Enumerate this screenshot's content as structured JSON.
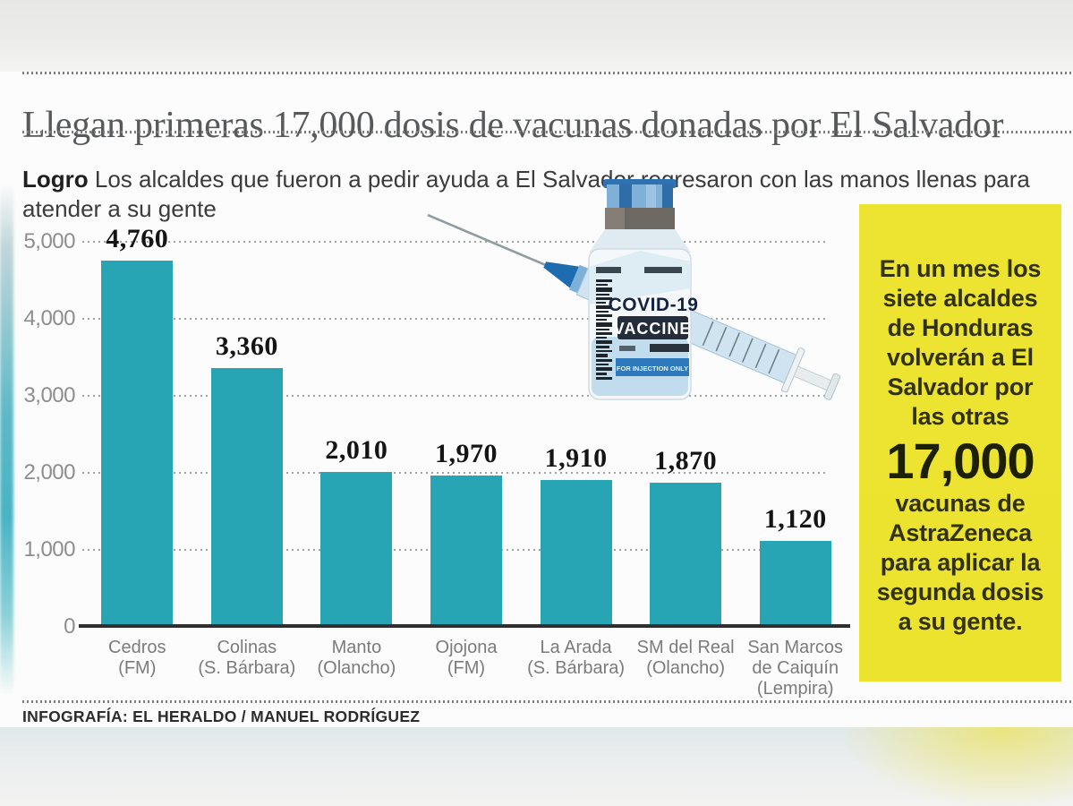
{
  "page": {
    "title": "Llegan primeras 17,000 dosis de vacunas donadas por El Salvador"
  },
  "lede": {
    "label": "Logro",
    "text": " Los alcaldes que fueron a pedir ayuda a El Salvador regresaron con las manos llenas para atender a su gente"
  },
  "chart_data": {
    "type": "bar",
    "title": "",
    "xlabel": "",
    "ylabel": "",
    "categories": [
      "Cedros (FM)",
      "Colinas (S. Bárbara)",
      "Manto (Olancho)",
      "Ojojona (FM)",
      "La Arada (S. Bárbara)",
      "SM del Real (Olancho)",
      "San Marcos de Caiquín (Lempira)"
    ],
    "category_lines": [
      [
        "Cedros",
        "(FM)"
      ],
      [
        "Colinas",
        "(S. Bárbara)"
      ],
      [
        "Manto",
        "(Olancho)"
      ],
      [
        "Ojojona",
        "(FM)"
      ],
      [
        "La Arada",
        "(S. Bárbara)"
      ],
      [
        "SM del Real",
        "(Olancho)"
      ],
      [
        "San Marcos",
        "de Caiquín",
        "(Lempira)"
      ]
    ],
    "values": [
      4760,
      3360,
      2010,
      1970,
      1910,
      1870,
      1120
    ],
    "value_labels": [
      "4,760",
      "3,360",
      "2,010",
      "1,970",
      "1,910",
      "1,870",
      "1,120"
    ],
    "yticks": [
      {
        "label": "5,000",
        "value": 5000
      },
      {
        "label": "4,000",
        "value": 4000
      },
      {
        "label": "3,000",
        "value": 3000
      },
      {
        "label": "2,000",
        "value": 2000
      },
      {
        "label": "1,000",
        "value": 1000
      },
      {
        "label": "0",
        "value": 0
      }
    ],
    "ylim": [
      0,
      5000
    ],
    "grid": "dotted-horizontal",
    "legend": "none",
    "bar_color": "#28a5b4"
  },
  "sidebar_note": {
    "text_before": "En un mes los siete alcaldes de Honduras volverán a El Salvador por las otras",
    "big_number": "17,000",
    "text_after": "vacunas de AstraZeneca para aplicar la segunda dosis a su gente.",
    "background": "#ebe32e"
  },
  "illustration": {
    "name": "covid-19-vaccine-vial-and-syringe",
    "vial_text_line1": "COVID-19",
    "vial_text_line2": "VACCINE",
    "vial_strip_text": "FOR INJECTION ONLY"
  },
  "footer": {
    "credit": "INFOGRAFÍA: EL HERALDO / MANUEL RODRÍGUEZ"
  }
}
